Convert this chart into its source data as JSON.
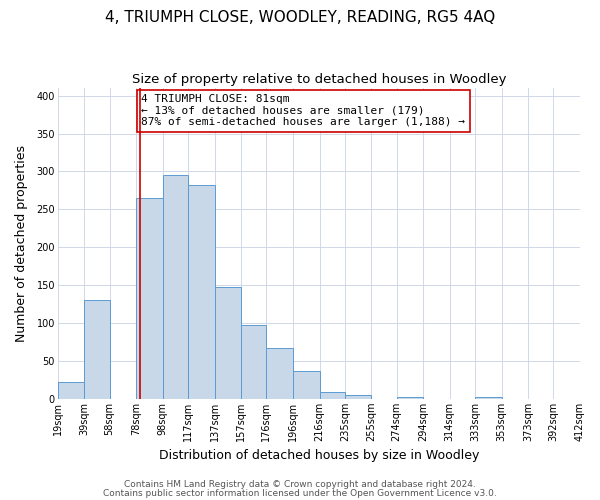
{
  "title": "4, TRIUMPH CLOSE, WOODLEY, READING, RG5 4AQ",
  "subtitle": "Size of property relative to detached houses in Woodley",
  "xlabel": "Distribution of detached houses by size in Woodley",
  "ylabel": "Number of detached properties",
  "bar_left_edges": [
    19,
    39,
    58,
    78,
    98,
    117,
    137,
    157,
    176,
    196,
    216,
    235,
    255,
    274,
    294,
    314,
    333,
    353,
    373,
    392
  ],
  "bar_heights": [
    22,
    130,
    0,
    265,
    295,
    282,
    147,
    98,
    67,
    37,
    9,
    5,
    0,
    3,
    0,
    0,
    2,
    0,
    0,
    0
  ],
  "bar_widths": [
    20,
    19,
    20,
    20,
    19,
    20,
    20,
    19,
    20,
    20,
    19,
    20,
    19,
    20,
    20,
    19,
    20,
    20,
    19,
    20
  ],
  "bar_color": "#c8d8e8",
  "bar_edge_color": "#5b9bd5",
  "property_line_x": 81,
  "property_line_color": "#cc0000",
  "annotation_text": "4 TRIUMPH CLOSE: 81sqm\n← 13% of detached houses are smaller (179)\n87% of semi-detached houses are larger (1,188) →",
  "annotation_box_color": "#ffffff",
  "annotation_box_edge_color": "#cc0000",
  "xlim": [
    19,
    412
  ],
  "ylim": [
    0,
    410
  ],
  "yticks": [
    0,
    50,
    100,
    150,
    200,
    250,
    300,
    350,
    400
  ],
  "xtick_labels": [
    "19sqm",
    "39sqm",
    "58sqm",
    "78sqm",
    "98sqm",
    "117sqm",
    "137sqm",
    "157sqm",
    "176sqm",
    "196sqm",
    "216sqm",
    "235sqm",
    "255sqm",
    "274sqm",
    "294sqm",
    "314sqm",
    "333sqm",
    "353sqm",
    "373sqm",
    "392sqm",
    "412sqm"
  ],
  "xtick_positions": [
    19,
    39,
    58,
    78,
    98,
    117,
    137,
    157,
    176,
    196,
    216,
    235,
    255,
    274,
    294,
    314,
    333,
    353,
    373,
    392,
    412
  ],
  "footer_lines": [
    "Contains HM Land Registry data © Crown copyright and database right 2024.",
    "Contains public sector information licensed under the Open Government Licence v3.0."
  ],
  "background_color": "#ffffff",
  "grid_color": "#d0d8e8",
  "title_fontsize": 11,
  "subtitle_fontsize": 9.5,
  "axis_label_fontsize": 9,
  "tick_fontsize": 7,
  "annotation_fontsize": 8,
  "footer_fontsize": 6.5
}
